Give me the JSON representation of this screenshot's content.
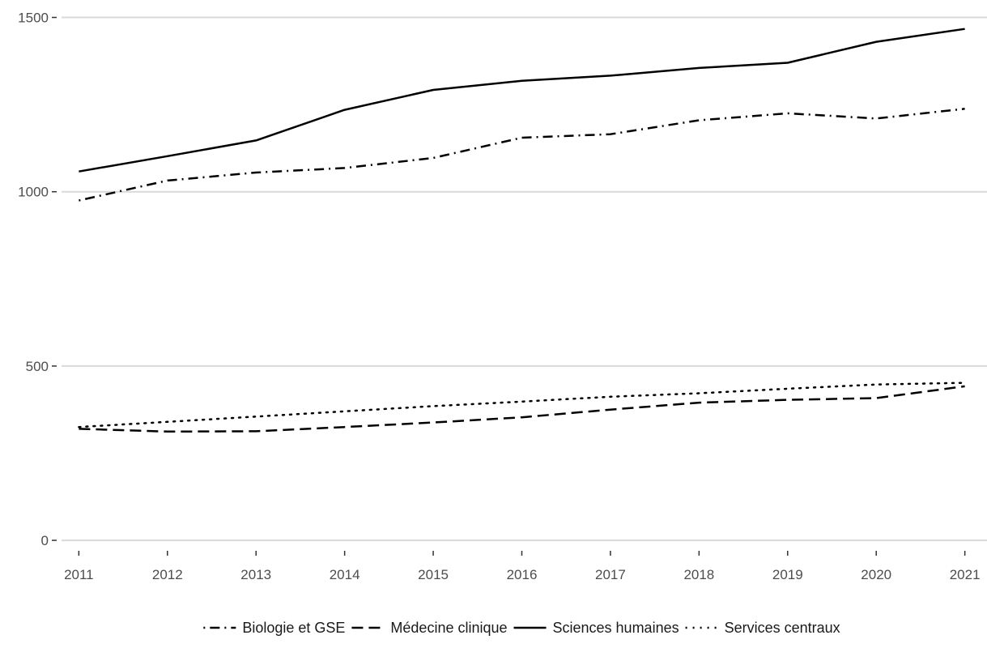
{
  "chart_data": {
    "type": "line",
    "title": "",
    "xlabel": "",
    "ylabel": "",
    "x": [
      2011,
      2012,
      2013,
      2014,
      2015,
      2016,
      2017,
      2018,
      2019,
      2020,
      2021
    ],
    "xlim": [
      2010.75,
      2021.25
    ],
    "ylim": [
      -30,
      1550
    ],
    "yticks": [
      0,
      500,
      1000,
      1500
    ],
    "grid": true,
    "legend_position": "bottom",
    "series": [
      {
        "name": "Biologie et GSE",
        "linestyle": "dashdot",
        "color": "#000000",
        "values": [
          975,
          1032,
          1055,
          1068,
          1097,
          1155,
          1165,
          1205,
          1225,
          1210,
          1238
        ]
      },
      {
        "name": "Médecine clinique",
        "linestyle": "dashed",
        "color": "#000000",
        "values": [
          320,
          312,
          313,
          325,
          338,
          353,
          375,
          395,
          403,
          408,
          442
        ]
      },
      {
        "name": "Sciences humaines",
        "linestyle": "solid",
        "color": "#000000",
        "values": [
          1058,
          1102,
          1147,
          1235,
          1292,
          1318,
          1333,
          1355,
          1370,
          1430,
          1467
        ]
      },
      {
        "name": "Services centraux",
        "linestyle": "dotted",
        "color": "#000000",
        "values": [
          325,
          340,
          355,
          370,
          385,
          398,
          412,
          422,
          435,
          447,
          452
        ]
      }
    ]
  }
}
